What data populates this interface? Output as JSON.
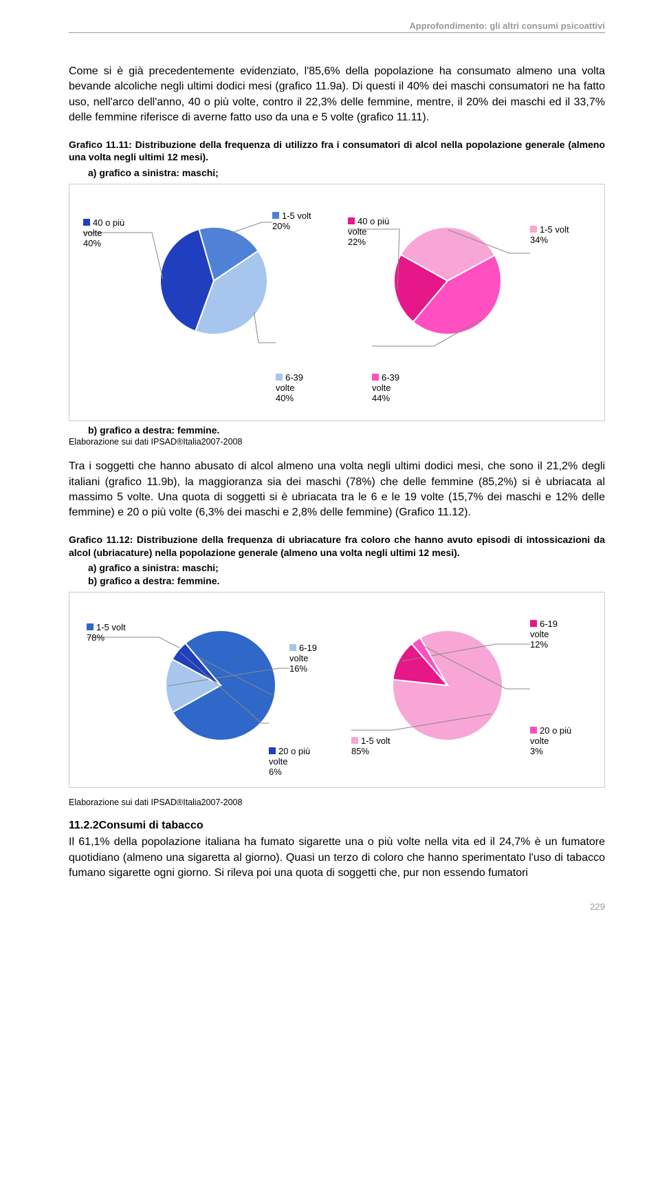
{
  "header": "Approfondimento: gli altri consumi psicoattivi",
  "para1": "Come si è già precedentemente evidenziato, l'85,6% della popolazione ha consumato almeno una volta bevande alcoliche negli ultimi dodici mesi (grafico 11.9a). Di questi il 40% dei maschi consumatori ne ha fatto uso, nell'arco dell'anno, 40 o più volte, contro il 22,3% delle femmine, mentre, il 20% dei maschi ed il 33,7% delle femmine riferisce di averne fatto uso da una e 5 volte (grafico 11.11).",
  "caption1": "Grafico 11.11: Distribuzione della frequenza di utilizzo fra i consumatori di alcol nella popolazione generale (almeno una volta negli ultimi 12 mesi).",
  "caption1a": "a)   grafico a sinistra: maschi;",
  "caption1b": "b)   grafico a destra: femmine.",
  "chart1": {
    "male": {
      "type": "pie",
      "slices": [
        {
          "label": "40 o più\nvolte\n40%",
          "value": 40,
          "color": "#1f3fbf",
          "marker": "#1f3fbf"
        },
        {
          "label": "1-5 volt\n20%",
          "value": 20,
          "color": "#4f81d6",
          "marker": "#4f81d6"
        },
        {
          "label": "6-39\nvolte\n40%",
          "value": 40,
          "color": "#a7c6ed",
          "marker": "#a7c6ed"
        }
      ]
    },
    "female": {
      "type": "pie",
      "slices": [
        {
          "label": "40 o più\nvolte\n22%",
          "value": 22,
          "color": "#e61789",
          "marker": "#e61789"
        },
        {
          "label": "1-5 volt\n34%",
          "value": 34,
          "color": "#f8a6d6",
          "marker": "#f8a6d6"
        },
        {
          "label": "6-39\nvolte\n44%",
          "value": 44,
          "color": "#ff4fc0",
          "marker": "#ff4fc0"
        }
      ]
    }
  },
  "source1": "Elaborazione sui dati IPSAD®Italia2007-2008",
  "para2": "Tra i soggetti che hanno abusato di alcol almeno una volta negli ultimi dodici mesi, che sono il 21,2% degli italiani (grafico 11.9b), la maggioranza sia dei maschi (78%) che delle femmine (85,2%) si è ubriacata al massimo 5 volte. Una quota di soggetti si è ubriacata tra le 6 e le 19 volte (15,7% dei maschi e 12% delle femmine) e 20 o più volte (6,3% dei maschi e 2,8% delle femmine) (Grafico 11.12).",
  "caption2": "Grafico 11.12: Distribuzione della frequenza di ubriacature fra coloro che hanno avuto episodi di intossicazioni da alcol (ubriacature) nella popolazione generale (almeno una volta negli ultimi 12 mesi).",
  "caption2a": "a)   grafico a sinistra: maschi;",
  "caption2b": "b)   grafico a destra: femmine.",
  "chart2": {
    "male": {
      "type": "pie",
      "slices": [
        {
          "label": "1-5 volt\n78%",
          "value": 78,
          "color": "#2f68c9",
          "marker": "#2f68c9"
        },
        {
          "label": "6-19\nvolte\n16%",
          "value": 16,
          "color": "#a7c6ed",
          "marker": "#a7c6ed"
        },
        {
          "label": "20 o più\nvolte\n6%",
          "value": 6,
          "color": "#1f3fbf",
          "marker": "#1f3fbf"
        }
      ]
    },
    "female": {
      "type": "pie",
      "slices": [
        {
          "label": "1-5 volt\n85%",
          "value": 85,
          "color": "#f8a6d6",
          "marker": "#f8a6d6"
        },
        {
          "label": "6-19\nvolte\n12%",
          "value": 12,
          "color": "#e61789",
          "marker": "#e61789"
        },
        {
          "label": "20 o più\nvolte\n3%",
          "value": 3,
          "color": "#ff4fc0",
          "marker": "#ff4fc0"
        }
      ]
    }
  },
  "source2": "Elaborazione sui dati IPSAD®Italia2007-2008",
  "section_head": "11.2.2Consumi di tabacco",
  "para3": "Il 61,1% della popolazione italiana ha fumato sigarette una o più volte nella vita ed il 24,7% è un fumatore quotidiano (almeno una sigaretta al giorno). Quasi un terzo di coloro che hanno sperimentato l'uso di tabacco fumano sigarette ogni giorno. Si rileva poi una quota di soggetti che, pur non essendo fumatori",
  "page_number": "229"
}
